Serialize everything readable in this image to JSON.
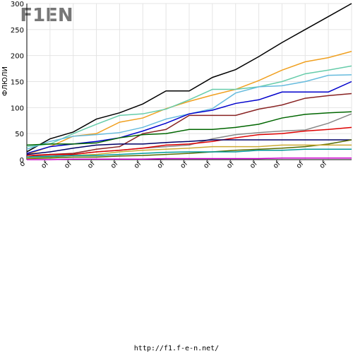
{
  "chart_data": {
    "type": "line",
    "logo": "F1EN",
    "y_label": "ФЛЮЛИ",
    "footer": "http://f1.f-e-n.net/",
    "categories": [
      "о",
      "of",
      "of",
      "of",
      "of",
      "of",
      "of",
      "of",
      "of",
      "of",
      "of",
      "of",
      "of",
      "of",
      null
    ],
    "ylim": [
      0,
      300
    ],
    "yticks": [
      0,
      50,
      100,
      150,
      200,
      250,
      300
    ],
    "grid": true,
    "series": [
      {
        "color": "#000000",
        "values": [
          15,
          40,
          53,
          78,
          90,
          107,
          132,
          132,
          158,
          173,
          198,
          225,
          250,
          275,
          300
        ]
      },
      {
        "color": "#f0a020",
        "values": [
          10,
          25,
          45,
          50,
          72,
          80,
          98,
          112,
          124,
          135,
          152,
          172,
          188,
          196,
          208
        ]
      },
      {
        "color": "#66ccaa",
        "values": [
          25,
          30,
          50,
          68,
          85,
          88,
          97,
          115,
          135,
          135,
          140,
          150,
          165,
          172,
          180
        ]
      },
      {
        "color": "#66bbdd",
        "values": [
          20,
          35,
          45,
          48,
          52,
          62,
          78,
          88,
          98,
          128,
          140,
          142,
          150,
          162,
          163
        ]
      },
      {
        "color": "#0000cc",
        "values": [
          12,
          25,
          30,
          35,
          42,
          55,
          70,
          88,
          95,
          108,
          115,
          130,
          130,
          130,
          150
        ]
      },
      {
        "color": "#882222",
        "values": [
          5,
          10,
          12,
          20,
          25,
          50,
          58,
          85,
          85,
          85,
          97,
          105,
          118,
          123,
          127
        ]
      },
      {
        "color": "#006600",
        "values": [
          28,
          30,
          30,
          32,
          42,
          48,
          50,
          58,
          58,
          62,
          68,
          80,
          87,
          90,
          92
        ]
      },
      {
        "color": "#888888",
        "values": [
          5,
          8,
          10,
          15,
          18,
          22,
          25,
          28,
          40,
          48,
          52,
          55,
          57,
          70,
          88
        ]
      },
      {
        "color": "#dd0000",
        "values": [
          8,
          10,
          10,
          15,
          18,
          22,
          28,
          30,
          35,
          42,
          48,
          50,
          55,
          58,
          62
        ]
      },
      {
        "color": "#000066",
        "values": [
          10,
          15,
          22,
          28,
          30,
          30,
          33,
          35,
          38,
          38,
          38,
          38,
          38,
          38,
          38
        ]
      },
      {
        "color": "#556b00",
        "values": [
          2,
          3,
          5,
          5,
          7,
          8,
          10,
          12,
          15,
          18,
          20,
          22,
          25,
          30,
          38
        ]
      },
      {
        "color": "#ccaa33",
        "values": [
          3,
          5,
          8,
          10,
          15,
          18,
          20,
          22,
          25,
          25,
          25,
          28,
          28,
          28,
          28
        ]
      },
      {
        "color": "#009999",
        "values": [
          5,
          6,
          8,
          8,
          10,
          12,
          14,
          15,
          15,
          15,
          18,
          18,
          20,
          20,
          20
        ]
      },
      {
        "color": "#cc00cc",
        "values": [
          0,
          0,
          1,
          1,
          1,
          1,
          2,
          2,
          2,
          2,
          2,
          3,
          3,
          3,
          3
        ]
      }
    ]
  }
}
